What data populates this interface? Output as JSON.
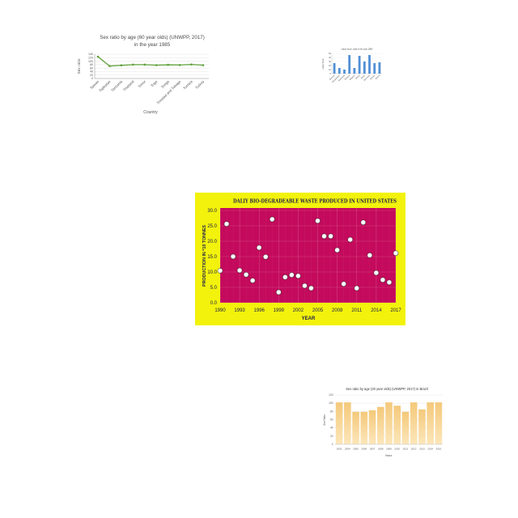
{
  "chart_data": [
    {
      "type": "line",
      "title": "Sex ratio by age (60 year olds) (UNWPP, 2017) in the year 1985",
      "xlabel": "Country",
      "ylabel": "Sex ratio",
      "categories": [
        "Taiwan",
        "Tajikistan",
        "Tanzania",
        "Thailand",
        "Timor",
        "Togo",
        "Tonga",
        "Trinidad and Tobago",
        "Tunisia",
        "Turkey"
      ],
      "values": [
        126,
        72,
        76,
        80,
        80,
        77,
        79,
        78,
        81,
        77
      ],
      "ylim": [
        0,
        140
      ],
      "ytick_labels": [
        "0",
        "20",
        "40",
        "60",
        "80",
        "100",
        "120",
        "140"
      ],
      "grid": true,
      "colors": {
        "line": "#5fa03a"
      }
    },
    {
      "type": "bar",
      "title": "Labor force, total in the year 1982",
      "ylabel": "Labor force",
      "categories": [
        "Bahrain",
        "Bangladesh",
        "Barbados",
        "Belarus",
        "Belgium",
        "Belize",
        "Benin",
        "Bermuda",
        "Bhutan",
        "Bolivia"
      ],
      "values": [
        26,
        14,
        10,
        46,
        14,
        44,
        30,
        46,
        26,
        28
      ],
      "ylim": [
        0,
        50
      ],
      "ytick_labels": [
        "0",
        "10",
        "20",
        "30",
        "40",
        "50"
      ],
      "grid": true,
      "colors": {
        "bar": "#4f8fd6"
      }
    },
    {
      "type": "scatter",
      "title": "DALIY BIO-DEGRADEABLE WASTE PRODUCED IN UNITED STATES",
      "xlabel": "YEAR",
      "ylabel": "PRODUCTION IN *10 TONNES",
      "x": [
        1990,
        1991,
        1992,
        1993,
        1994,
        1995,
        1996,
        1997,
        1998,
        1999,
        2000,
        2001,
        2002,
        2003,
        2004,
        2005,
        2006,
        2007,
        2008,
        2009,
        2010,
        2011,
        2012,
        2013,
        2014,
        2015,
        2016,
        2017
      ],
      "y": [
        10.4,
        25.6,
        15.0,
        10.5,
        9.1,
        7.2,
        17.9,
        14.9,
        27.1,
        3.4,
        8.3,
        9.0,
        8.7,
        5.5,
        4.7,
        26.6,
        21.6,
        21.6,
        17.1,
        6.1,
        20.5,
        4.7,
        26.1,
        15.4,
        9.7,
        7.4,
        6.6,
        16.1
      ],
      "xlim": [
        1990,
        2017
      ],
      "ylim": [
        0,
        30
      ],
      "xtick_labels": [
        "1990",
        "1993",
        "1996",
        "1999",
        "2002",
        "2005",
        "2008",
        "2011",
        "2014",
        "2017"
      ],
      "ytick_labels": [
        "0.0",
        "5.0",
        "10.0",
        "15.0",
        "20.0",
        "25.0",
        "30.0"
      ],
      "grid": true,
      "colors": {
        "background": "#f2f20c",
        "plot": "#c40a5c",
        "text": "#1b1b4b",
        "marker": "#ffffff"
      }
    },
    {
      "type": "bar",
      "title": "Sex ratio by age (20 year olds) (UNWPP, 2017) in Brazil",
      "xlabel": "Years",
      "ylabel": "Sex Ratio",
      "categories": [
        "2002",
        "2004",
        "2005",
        "2006",
        "2007",
        "2008",
        "2009",
        "2010",
        "2011",
        "2012",
        "2013",
        "2014",
        "2015"
      ],
      "values": [
        102,
        102,
        79,
        79,
        83,
        91,
        102,
        94,
        79,
        102,
        85,
        102,
        102
      ],
      "ylim": [
        0,
        120
      ],
      "ytick_labels": [
        "0",
        "20",
        "40",
        "60",
        "80",
        "100",
        "120"
      ],
      "grid": true,
      "colors": {
        "bar_top": "#f4c97a",
        "bar_bottom": "#fce6ba"
      }
    }
  ]
}
